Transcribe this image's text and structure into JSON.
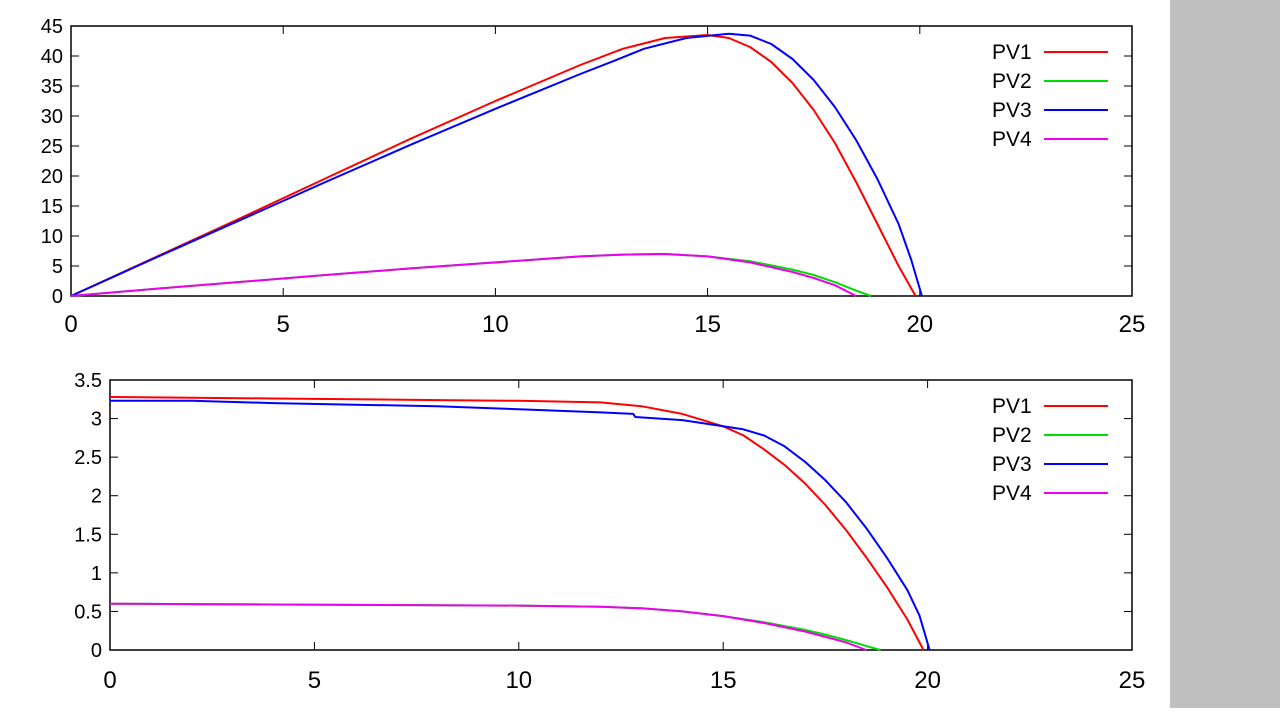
{
  "colors": {
    "PV1": "#ff0000",
    "PV2": "#00dd00",
    "PV3": "#0000ff",
    "PV4": "#ee00ee",
    "side_panel": "#c0c0c0"
  },
  "chart_data": [
    {
      "type": "line",
      "title": "",
      "xlabel": "",
      "ylabel": "",
      "xlim": [
        0,
        25
      ],
      "ylim": [
        0,
        45
      ],
      "xticks": [
        0,
        5,
        10,
        15,
        20,
        25
      ],
      "yticks": [
        0,
        5,
        10,
        15,
        20,
        25,
        30,
        35,
        40,
        45
      ],
      "grid": false,
      "legend_position": "top-right",
      "series": [
        {
          "name": "PV1",
          "color": "#ff0000",
          "x": [
            0,
            2,
            4,
            6,
            8,
            10,
            12,
            13,
            14,
            15,
            15.5,
            16,
            16.5,
            17,
            17.5,
            18,
            18.5,
            19,
            19.5,
            19.9
          ],
          "y": [
            0,
            6.5,
            13,
            19.6,
            26.2,
            32.5,
            38.5,
            41.2,
            43.0,
            43.5,
            43.0,
            41.5,
            39.0,
            35.5,
            31.0,
            25.5,
            19.0,
            12.0,
            5.0,
            0
          ]
        },
        {
          "name": "PV2",
          "color": "#00dd00",
          "x": [
            0,
            2,
            4,
            6,
            8,
            10,
            12,
            13,
            14,
            15,
            16,
            17,
            17.5,
            18,
            18.5,
            18.85
          ],
          "y": [
            0,
            1.2,
            2.35,
            3.5,
            4.6,
            5.6,
            6.6,
            6.9,
            7.0,
            6.6,
            5.8,
            4.4,
            3.5,
            2.3,
            0.9,
            0
          ]
        },
        {
          "name": "PV3",
          "color": "#0000ff",
          "x": [
            0,
            2,
            4,
            6,
            8,
            10,
            12,
            12.8,
            13.5,
            14.5,
            15.5,
            16,
            16.5,
            17,
            17.5,
            18,
            18.5,
            19,
            19.5,
            19.8,
            20.05
          ],
          "y": [
            0,
            6.4,
            12.7,
            19.0,
            25.2,
            31.2,
            37.0,
            39.2,
            41.2,
            43.0,
            43.7,
            43.4,
            42.0,
            39.5,
            36.0,
            31.5,
            26.0,
            19.5,
            12.0,
            6.0,
            0
          ]
        },
        {
          "name": "PV4",
          "color": "#ee00ee",
          "x": [
            0,
            2,
            4,
            6,
            8,
            10,
            12,
            13,
            14,
            15,
            16,
            17,
            17.5,
            18,
            18.5
          ],
          "y": [
            0,
            1.2,
            2.35,
            3.5,
            4.6,
            5.6,
            6.6,
            6.9,
            7.0,
            6.6,
            5.6,
            4.0,
            3.0,
            1.8,
            0
          ]
        }
      ]
    },
    {
      "type": "line",
      "title": "",
      "xlabel": "",
      "ylabel": "",
      "xlim": [
        0,
        25
      ],
      "ylim": [
        0,
        3.5
      ],
      "xticks": [
        0,
        5,
        10,
        15,
        20,
        25
      ],
      "yticks": [
        0,
        0.5,
        1,
        1.5,
        2,
        2.5,
        3,
        3.5
      ],
      "grid": false,
      "legend_position": "top-right",
      "series": [
        {
          "name": "PV1",
          "color": "#ff0000",
          "x": [
            0,
            2,
            4,
            6,
            8,
            10,
            12,
            13,
            14,
            15,
            15.5,
            16,
            16.5,
            17,
            17.5,
            18,
            18.5,
            19,
            19.5,
            19.9
          ],
          "y": [
            3.28,
            3.27,
            3.26,
            3.25,
            3.24,
            3.23,
            3.21,
            3.16,
            3.06,
            2.9,
            2.78,
            2.6,
            2.4,
            2.16,
            1.88,
            1.56,
            1.2,
            0.82,
            0.4,
            0
          ]
        },
        {
          "name": "PV2",
          "color": "#00dd00",
          "x": [
            0,
            2,
            4,
            6,
            8,
            10,
            12,
            13,
            14,
            15,
            16,
            17,
            17.5,
            18,
            18.5,
            18.85
          ],
          "y": [
            0.6,
            0.595,
            0.59,
            0.585,
            0.58,
            0.575,
            0.56,
            0.54,
            0.5,
            0.44,
            0.36,
            0.26,
            0.2,
            0.13,
            0.05,
            0
          ]
        },
        {
          "name": "PV3",
          "color": "#0000ff",
          "x": [
            0,
            2,
            4,
            6,
            8,
            10,
            12,
            12.8,
            12.85,
            14,
            15,
            15.5,
            16,
            16.5,
            17,
            17.5,
            18,
            18.5,
            19,
            19.5,
            19.8,
            20.05
          ],
          "y": [
            3.23,
            3.23,
            3.2,
            3.18,
            3.16,
            3.12,
            3.08,
            3.06,
            3.02,
            2.98,
            2.9,
            2.86,
            2.78,
            2.64,
            2.44,
            2.2,
            1.92,
            1.58,
            1.2,
            0.78,
            0.45,
            0
          ]
        },
        {
          "name": "PV4",
          "color": "#ee00ee",
          "x": [
            0,
            2,
            4,
            6,
            8,
            10,
            12,
            13,
            14,
            15,
            16,
            17,
            17.5,
            18,
            18.5
          ],
          "y": [
            0.6,
            0.595,
            0.59,
            0.585,
            0.58,
            0.575,
            0.56,
            0.54,
            0.5,
            0.44,
            0.35,
            0.24,
            0.17,
            0.1,
            0
          ]
        }
      ]
    }
  ]
}
